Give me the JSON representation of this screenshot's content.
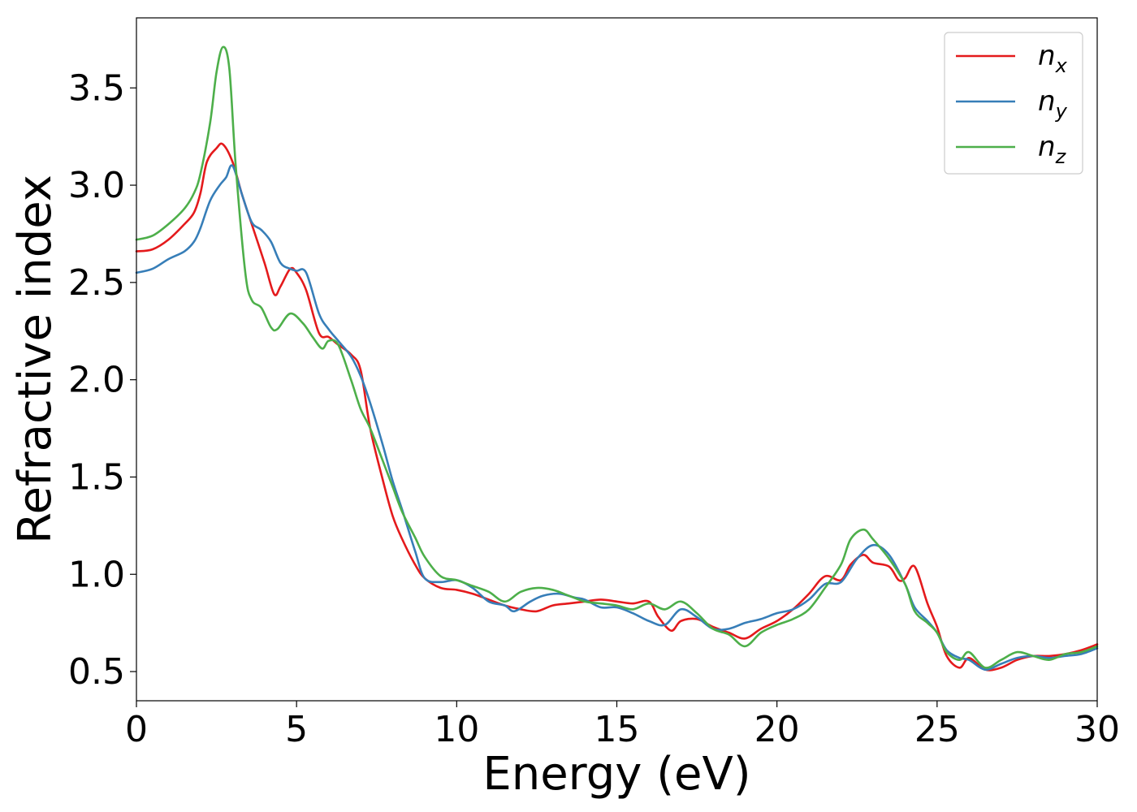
{
  "chart_data": {
    "type": "line",
    "xlabel": "Energy (eV)",
    "ylabel": "Refractive index",
    "xlim": [
      0,
      30
    ],
    "ylim": [
      0.35,
      3.86
    ],
    "xticks": [
      0,
      5,
      10,
      15,
      20,
      25,
      30
    ],
    "yticks": [
      0.5,
      1.0,
      1.5,
      2.0,
      2.5,
      3.0,
      3.5
    ],
    "xtick_labels": [
      "0",
      "5",
      "10",
      "15",
      "20",
      "25",
      "30"
    ],
    "ytick_labels": [
      "0.5",
      "1.0",
      "1.5",
      "2.0",
      "2.5",
      "3.0",
      "3.5"
    ],
    "grid": false,
    "legend_position": "top-right",
    "series": [
      {
        "name": "n",
        "subscript": "x",
        "color": "#e41a1c",
        "points": [
          [
            0,
            2.66
          ],
          [
            0.5,
            2.67
          ],
          [
            1,
            2.72
          ],
          [
            1.5,
            2.8
          ],
          [
            1.8,
            2.86
          ],
          [
            2,
            2.96
          ],
          [
            2.2,
            3.12
          ],
          [
            2.5,
            3.19
          ],
          [
            2.7,
            3.21
          ],
          [
            3,
            3.12
          ],
          [
            3.3,
            2.95
          ],
          [
            3.6,
            2.8
          ],
          [
            4,
            2.6
          ],
          [
            4.3,
            2.44
          ],
          [
            4.5,
            2.48
          ],
          [
            4.8,
            2.57
          ],
          [
            5,
            2.55
          ],
          [
            5.3,
            2.46
          ],
          [
            5.7,
            2.24
          ],
          [
            6,
            2.22
          ],
          [
            6.3,
            2.18
          ],
          [
            6.7,
            2.13
          ],
          [
            7,
            2.05
          ],
          [
            7.3,
            1.75
          ],
          [
            7.7,
            1.48
          ],
          [
            8,
            1.3
          ],
          [
            8.3,
            1.18
          ],
          [
            8.7,
            1.05
          ],
          [
            9,
            0.98
          ],
          [
            9.5,
            0.93
          ],
          [
            10,
            0.92
          ],
          [
            10.5,
            0.9
          ],
          [
            11,
            0.87
          ],
          [
            11.5,
            0.84
          ],
          [
            12,
            0.82
          ],
          [
            12.5,
            0.81
          ],
          [
            13,
            0.84
          ],
          [
            13.5,
            0.85
          ],
          [
            14,
            0.86
          ],
          [
            14.5,
            0.87
          ],
          [
            15,
            0.86
          ],
          [
            15.5,
            0.85
          ],
          [
            16,
            0.86
          ],
          [
            16.3,
            0.78
          ],
          [
            16.7,
            0.71
          ],
          [
            17,
            0.76
          ],
          [
            17.5,
            0.77
          ],
          [
            18,
            0.73
          ],
          [
            18.5,
            0.7
          ],
          [
            19,
            0.67
          ],
          [
            19.5,
            0.72
          ],
          [
            20,
            0.76
          ],
          [
            20.5,
            0.82
          ],
          [
            21,
            0.9
          ],
          [
            21.5,
            0.99
          ],
          [
            22,
            0.97
          ],
          [
            22.3,
            1.05
          ],
          [
            22.7,
            1.1
          ],
          [
            23,
            1.06
          ],
          [
            23.5,
            1.04
          ],
          [
            23.8,
            0.97
          ],
          [
            24,
            0.98
          ],
          [
            24.3,
            1.04
          ],
          [
            24.7,
            0.85
          ],
          [
            25,
            0.73
          ],
          [
            25.3,
            0.58
          ],
          [
            25.7,
            0.52
          ],
          [
            26,
            0.57
          ],
          [
            26.5,
            0.51
          ],
          [
            27,
            0.52
          ],
          [
            27.5,
            0.56
          ],
          [
            28,
            0.58
          ],
          [
            28.5,
            0.58
          ],
          [
            29,
            0.59
          ],
          [
            29.5,
            0.61
          ],
          [
            30,
            0.64
          ]
        ]
      },
      {
        "name": "n",
        "subscript": "y",
        "color": "#377eb8",
        "points": [
          [
            0,
            2.55
          ],
          [
            0.5,
            2.57
          ],
          [
            1,
            2.62
          ],
          [
            1.5,
            2.66
          ],
          [
            1.8,
            2.71
          ],
          [
            2,
            2.78
          ],
          [
            2.3,
            2.92
          ],
          [
            2.6,
            3.0
          ],
          [
            2.8,
            3.04
          ],
          [
            3,
            3.1
          ],
          [
            3.3,
            2.95
          ],
          [
            3.6,
            2.81
          ],
          [
            3.9,
            2.77
          ],
          [
            4.2,
            2.71
          ],
          [
            4.5,
            2.6
          ],
          [
            4.8,
            2.57
          ],
          [
            5,
            2.56
          ],
          [
            5.3,
            2.55
          ],
          [
            5.7,
            2.34
          ],
          [
            6,
            2.26
          ],
          [
            6.3,
            2.2
          ],
          [
            6.7,
            2.12
          ],
          [
            7,
            2.02
          ],
          [
            7.3,
            1.88
          ],
          [
            7.7,
            1.66
          ],
          [
            8,
            1.48
          ],
          [
            8.3,
            1.33
          ],
          [
            8.7,
            1.12
          ],
          [
            9,
            0.98
          ],
          [
            9.5,
            0.96
          ],
          [
            10,
            0.97
          ],
          [
            10.5,
            0.93
          ],
          [
            11,
            0.86
          ],
          [
            11.5,
            0.84
          ],
          [
            11.8,
            0.81
          ],
          [
            12.3,
            0.86
          ],
          [
            12.7,
            0.89
          ],
          [
            13.2,
            0.9
          ],
          [
            13.7,
            0.88
          ],
          [
            14,
            0.87
          ],
          [
            14.5,
            0.83
          ],
          [
            15,
            0.83
          ],
          [
            15.5,
            0.8
          ],
          [
            16,
            0.76
          ],
          [
            16.5,
            0.74
          ],
          [
            17,
            0.82
          ],
          [
            17.5,
            0.78
          ],
          [
            18,
            0.72
          ],
          [
            18.5,
            0.72
          ],
          [
            19,
            0.75
          ],
          [
            19.5,
            0.77
          ],
          [
            20,
            0.8
          ],
          [
            20.5,
            0.82
          ],
          [
            21,
            0.87
          ],
          [
            21.5,
            0.95
          ],
          [
            22,
            0.96
          ],
          [
            22.5,
            1.08
          ],
          [
            23,
            1.15
          ],
          [
            23.5,
            1.1
          ],
          [
            24,
            0.95
          ],
          [
            24.3,
            0.83
          ],
          [
            24.7,
            0.76
          ],
          [
            25,
            0.7
          ],
          [
            25.3,
            0.61
          ],
          [
            25.7,
            0.57
          ],
          [
            26,
            0.56
          ],
          [
            26.5,
            0.51
          ],
          [
            27,
            0.54
          ],
          [
            27.5,
            0.57
          ],
          [
            28,
            0.58
          ],
          [
            28.5,
            0.57
          ],
          [
            29,
            0.58
          ],
          [
            29.5,
            0.59
          ],
          [
            30,
            0.62
          ]
        ]
      },
      {
        "name": "n",
        "subscript": "z",
        "color": "#4daf4a",
        "points": [
          [
            0,
            2.72
          ],
          [
            0.5,
            2.74
          ],
          [
            1,
            2.8
          ],
          [
            1.5,
            2.88
          ],
          [
            1.8,
            2.96
          ],
          [
            2,
            3.06
          ],
          [
            2.3,
            3.32
          ],
          [
            2.5,
            3.58
          ],
          [
            2.7,
            3.71
          ],
          [
            2.9,
            3.6
          ],
          [
            3.1,
            3.1
          ],
          [
            3.4,
            2.55
          ],
          [
            3.6,
            2.41
          ],
          [
            3.9,
            2.37
          ],
          [
            4.2,
            2.27
          ],
          [
            4.4,
            2.26
          ],
          [
            4.8,
            2.34
          ],
          [
            5.2,
            2.29
          ],
          [
            5.5,
            2.22
          ],
          [
            5.8,
            2.16
          ],
          [
            6,
            2.2
          ],
          [
            6.3,
            2.18
          ],
          [
            6.7,
            2.0
          ],
          [
            7,
            1.85
          ],
          [
            7.3,
            1.75
          ],
          [
            7.7,
            1.58
          ],
          [
            8,
            1.45
          ],
          [
            8.3,
            1.32
          ],
          [
            8.7,
            1.19
          ],
          [
            9,
            1.09
          ],
          [
            9.5,
            0.99
          ],
          [
            10,
            0.97
          ],
          [
            10.5,
            0.94
          ],
          [
            11,
            0.91
          ],
          [
            11.5,
            0.86
          ],
          [
            12,
            0.91
          ],
          [
            12.5,
            0.93
          ],
          [
            13,
            0.92
          ],
          [
            13.5,
            0.89
          ],
          [
            14,
            0.86
          ],
          [
            14.5,
            0.85
          ],
          [
            15,
            0.84
          ],
          [
            15.5,
            0.82
          ],
          [
            16,
            0.85
          ],
          [
            16.5,
            0.82
          ],
          [
            17,
            0.86
          ],
          [
            17.5,
            0.8
          ],
          [
            18,
            0.72
          ],
          [
            18.5,
            0.69
          ],
          [
            19,
            0.63
          ],
          [
            19.5,
            0.7
          ],
          [
            20,
            0.74
          ],
          [
            20.5,
            0.77
          ],
          [
            21,
            0.82
          ],
          [
            21.5,
            0.93
          ],
          [
            22,
            1.05
          ],
          [
            22.3,
            1.18
          ],
          [
            22.7,
            1.23
          ],
          [
            23,
            1.18
          ],
          [
            23.5,
            1.08
          ],
          [
            24,
            0.95
          ],
          [
            24.3,
            0.81
          ],
          [
            24.7,
            0.75
          ],
          [
            25,
            0.7
          ],
          [
            25.3,
            0.6
          ],
          [
            25.7,
            0.56
          ],
          [
            26,
            0.6
          ],
          [
            26.5,
            0.52
          ],
          [
            27,
            0.56
          ],
          [
            27.5,
            0.6
          ],
          [
            28,
            0.58
          ],
          [
            28.5,
            0.56
          ],
          [
            29,
            0.59
          ],
          [
            29.5,
            0.6
          ],
          [
            30,
            0.63
          ]
        ]
      }
    ]
  }
}
